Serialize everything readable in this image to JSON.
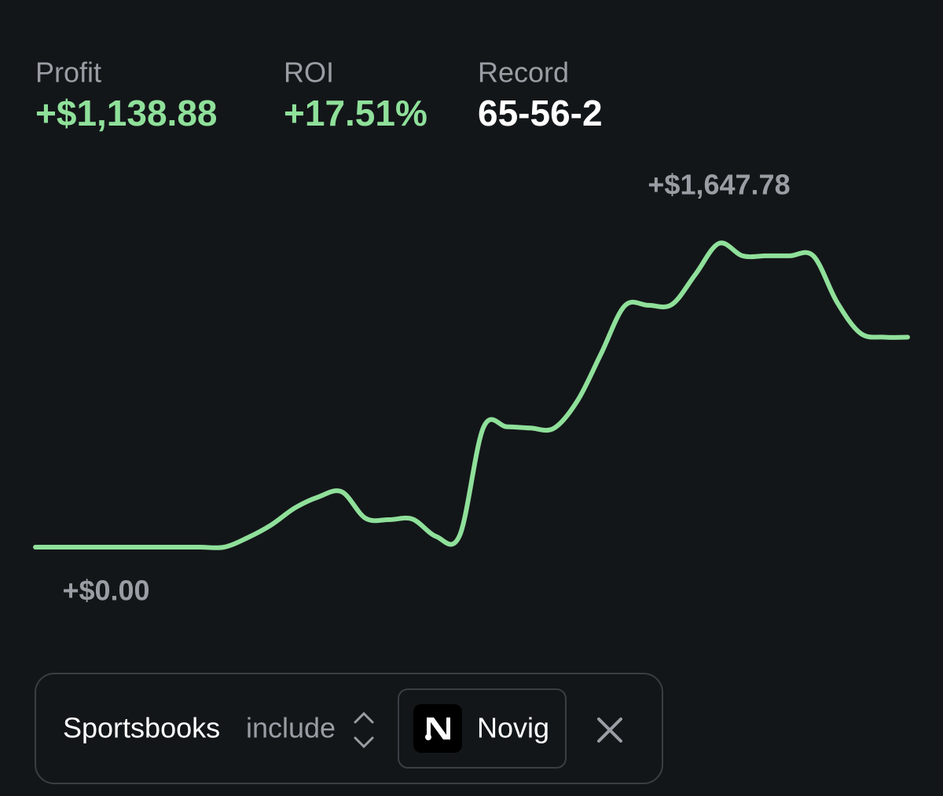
{
  "stats": [
    {
      "label": "Profit",
      "value": "+$1,138.88",
      "color": "#8fe09a"
    },
    {
      "label": "ROI",
      "value": "+17.51%",
      "color": "#8fe09a"
    },
    {
      "label": "Record",
      "value": "65-56-2",
      "color": "#ffffff"
    }
  ],
  "chart_data": {
    "type": "line",
    "series": [
      {
        "color": "#8fe09a",
        "values": [
          0,
          0,
          0,
          0,
          0,
          0,
          0,
          0,
          0,
          51,
          120,
          212,
          272,
          300,
          157,
          149,
          152,
          58,
          64,
          647,
          653,
          646,
          645,
          795,
          1050,
          1309,
          1312,
          1316,
          1480,
          1647.78,
          1580,
          1580,
          1580,
          1580,
          1330,
          1160,
          1138.88,
          1138.88
        ]
      }
    ],
    "annotations": [
      {
        "value": 1647.78,
        "label": "+$1,647.78"
      },
      {
        "value": 0,
        "label": "+$0.00"
      }
    ]
  },
  "filter": {
    "field": "Sportsbooks",
    "operator": "include",
    "chip": "Novig"
  }
}
